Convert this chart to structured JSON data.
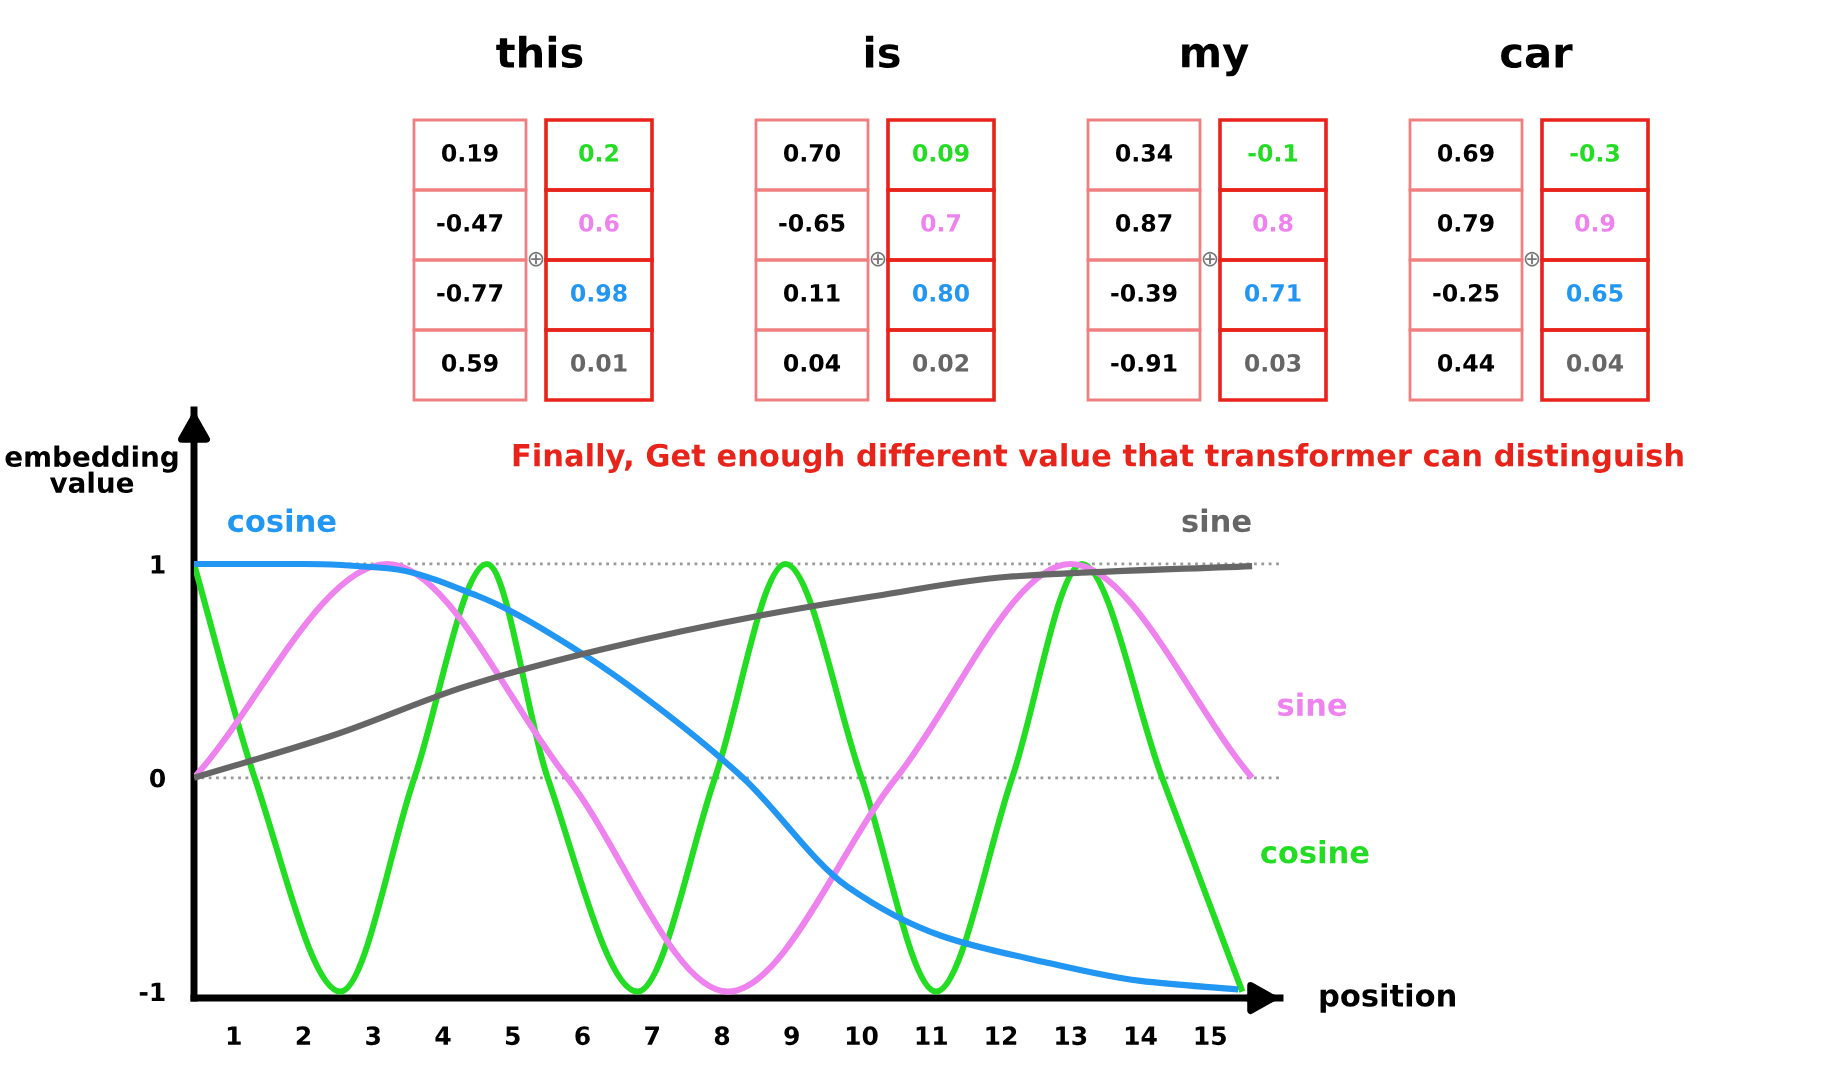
{
  "chart_data": {
    "type": "line",
    "title": "Finally, Get enough different value that transformer can distinguish",
    "xlabel": "position",
    "ylabel": "embedding\nvalue",
    "xlim": [
      0.43,
      16
    ],
    "ylim": [
      -1.03,
      1.72
    ],
    "xticks": [
      1,
      2,
      3,
      4,
      5,
      6,
      7,
      8,
      9,
      10,
      11,
      12,
      13,
      14,
      15
    ],
    "yticks": [
      -1,
      0,
      1
    ],
    "grid": false,
    "legend": false,
    "marker": "none",
    "line_style": "solid",
    "ref_lines": [
      {
        "axis": "y",
        "value": 1,
        "color": "#999999",
        "line_style": "dotted"
      },
      {
        "axis": "y",
        "value": 0,
        "color": "#999999",
        "line_style": "dotted"
      }
    ],
    "series": [
      {
        "name": "cosine",
        "color": "#22dd22",
        "x": [
          0.43,
          1.3,
          2.53,
          3.59,
          4.63,
          5.5,
          6.79,
          7.9,
          8.91,
          10.0,
          11.07,
          12.16,
          13.16,
          14.31,
          15.46
        ],
        "values": [
          1,
          0,
          -1,
          0,
          1,
          0,
          -1,
          0,
          1,
          0,
          -1,
          0,
          1,
          0,
          -1
        ]
      },
      {
        "name": "sine",
        "color": "#ee82ee",
        "x": [
          0.43,
          3.2,
          5.78,
          8.08,
          10.5,
          13.0,
          15.6
        ],
        "values": [
          0,
          1,
          0,
          -1,
          0,
          1,
          0
        ]
      },
      {
        "name": "cosine",
        "color": "#2196f3",
        "x": [
          0.43,
          2,
          3.2,
          4.5,
          6,
          7.2,
          8.3,
          9.8,
          11.15,
          12.6,
          14,
          15.4
        ],
        "values": [
          1,
          1,
          0.98,
          0.85,
          0.58,
          0.3,
          0,
          -0.51,
          -0.74,
          -0.86,
          -0.95,
          -0.99
        ]
      },
      {
        "name": "sine",
        "color": "#666666",
        "x": [
          0.43,
          2.44,
          4.35,
          6.27,
          8.57,
          10.2,
          12.1,
          15.6
        ],
        "values": [
          0,
          0.2,
          0.43,
          0.6,
          0.76,
          0.85,
          0.94,
          0.99
        ]
      }
    ],
    "annotations": [
      "this",
      "0.19",
      "-0.47",
      "-0.77",
      "0.59",
      "⊕",
      "0.2",
      "0.6",
      "0.98",
      "0.01",
      "is",
      "0.70",
      "-0.65",
      "0.11",
      "0.04",
      "⊕",
      "0.09",
      "0.7",
      "0.80",
      "0.02",
      "my",
      "0.34",
      "0.87",
      "-0.39",
      "-0.91",
      "⊕",
      "-0.1",
      "0.8",
      "0.71",
      "0.03",
      "car",
      "0.69",
      "0.79",
      "-0.25",
      "0.44",
      "⊕",
      "-0.3",
      "0.9",
      "0.65",
      "0.04"
    ]
  }
}
